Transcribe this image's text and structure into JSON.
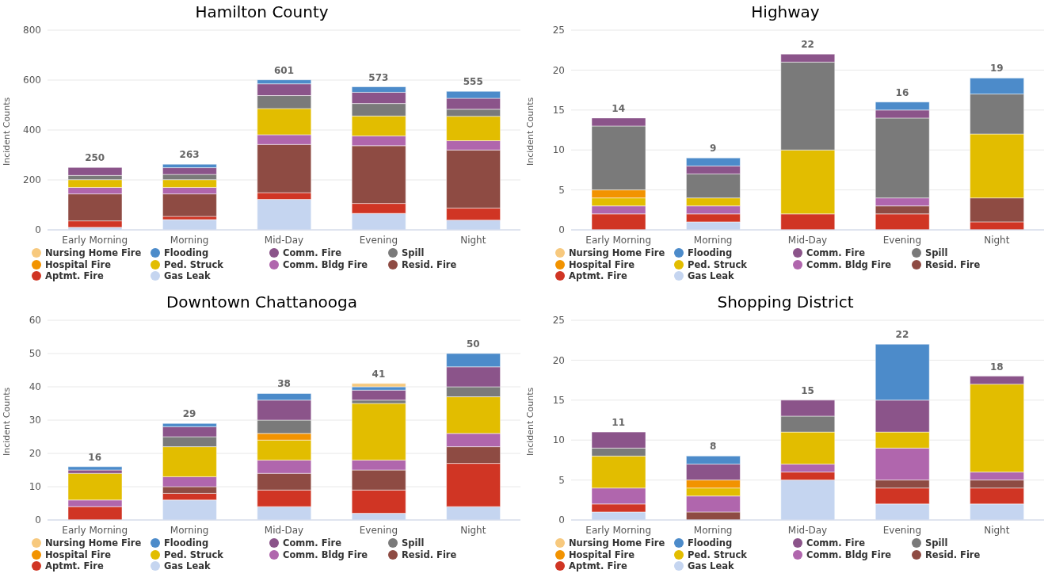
{
  "chart_data": [
    {
      "type": "bar",
      "title": "Hamilton County",
      "ylabel": "Incident Counts",
      "categories": [
        "Early Morning",
        "Morning",
        "Mid-Day",
        "Evening",
        "Night"
      ],
      "stacked": true,
      "ylim": [
        0,
        800
      ],
      "yticks": [
        0,
        200,
        400,
        600,
        800
      ],
      "grid": "y",
      "legend": "bottom",
      "totals": [
        "250",
        "263",
        "601",
        "573",
        "555"
      ],
      "series": [
        {
          "name": "Gas Leak",
          "color": "#c5d5f0",
          "values": [
            10,
            41,
            122,
            66,
            39
          ]
        },
        {
          "name": "Aptmt. Fire",
          "color": "#d03524",
          "values": [
            26,
            13,
            27,
            40,
            48
          ]
        },
        {
          "name": "Resid. Fire",
          "color": "#8e4b43",
          "values": [
            108,
            90,
            193,
            231,
            233
          ]
        },
        {
          "name": "Comm. Bldg Fire",
          "color": "#b066ad",
          "values": [
            26,
            26,
            39,
            39,
            37
          ]
        },
        {
          "name": "Ped. Struck",
          "color": "#e2bd00",
          "values": [
            31,
            31,
            105,
            80,
            98
          ]
        },
        {
          "name": "Hospital Fire",
          "color": "#f29300",
          "values": [
            null,
            null,
            null,
            null,
            null
          ]
        },
        {
          "name": "Spill",
          "color": "#7a7a7a",
          "values": [
            17,
            21,
            52,
            50,
            28
          ]
        },
        {
          "name": "Comm. Fire",
          "color": "#8b548a",
          "values": [
            32,
            27,
            47,
            45,
            44
          ]
        },
        {
          "name": "Flooding",
          "color": "#4c8bca",
          "values": [
            null,
            14,
            16,
            22,
            28
          ]
        },
        {
          "name": "Nursing Home Fire",
          "color": "#f7c97e",
          "values": [
            null,
            null,
            null,
            null,
            null
          ]
        }
      ]
    },
    {
      "type": "bar",
      "title": "Highway",
      "ylabel": "Incident Counts",
      "categories": [
        "Early Morning",
        "Morning",
        "Mid-Day",
        "Evening",
        "Night"
      ],
      "stacked": true,
      "ylim": [
        0,
        25
      ],
      "yticks": [
        0,
        5,
        10,
        15,
        20,
        25
      ],
      "grid": "y",
      "legend": "bottom",
      "totals": [
        "14",
        "9",
        "22",
        "16",
        "19"
      ],
      "series": [
        {
          "name": "Gas Leak",
          "color": "#c5d5f0",
          "values": [
            null,
            1,
            null,
            null,
            null
          ]
        },
        {
          "name": "Aptmt. Fire",
          "color": "#d03524",
          "values": [
            2,
            1,
            2,
            2,
            1
          ]
        },
        {
          "name": "Resid. Fire",
          "color": "#8e4b43",
          "values": [
            null,
            null,
            null,
            1,
            3
          ]
        },
        {
          "name": "Comm. Bldg Fire",
          "color": "#b066ad",
          "values": [
            1,
            1,
            null,
            1,
            null
          ]
        },
        {
          "name": "Ped. Struck",
          "color": "#e2bd00",
          "values": [
            1,
            1,
            8,
            null,
            8
          ]
        },
        {
          "name": "Hospital Fire",
          "color": "#f29300",
          "values": [
            1,
            null,
            null,
            null,
            null
          ]
        },
        {
          "name": "Spill",
          "color": "#7a7a7a",
          "values": [
            8,
            3,
            11,
            10,
            5
          ]
        },
        {
          "name": "Comm. Fire",
          "color": "#8b548a",
          "values": [
            1,
            1,
            1,
            1,
            null
          ]
        },
        {
          "name": "Flooding",
          "color": "#4c8bca",
          "values": [
            null,
            1,
            null,
            1,
            2
          ]
        },
        {
          "name": "Nursing Home Fire",
          "color": "#f7c97e",
          "values": [
            null,
            null,
            null,
            null,
            null
          ]
        }
      ]
    },
    {
      "type": "bar",
      "title": "Downtown Chattanooga",
      "ylabel": "Incident Counts",
      "categories": [
        "Early Morning",
        "Morning",
        "Mid-Day",
        "Evening",
        "Night"
      ],
      "stacked": true,
      "ylim": [
        0,
        60
      ],
      "yticks": [
        0,
        10,
        20,
        30,
        40,
        50,
        60
      ],
      "grid": "y",
      "legend": "bottom",
      "totals": [
        "16",
        "29",
        "38",
        "41",
        "50"
      ],
      "series": [
        {
          "name": "Gas Leak",
          "color": "#c5d5f0",
          "values": [
            null,
            6,
            4,
            2,
            4
          ]
        },
        {
          "name": "Aptmt. Fire",
          "color": "#d03524",
          "values": [
            4,
            2,
            5,
            7,
            13
          ]
        },
        {
          "name": "Resid. Fire",
          "color": "#8e4b43",
          "values": [
            null,
            2,
            5,
            6,
            5
          ]
        },
        {
          "name": "Comm. Bldg Fire",
          "color": "#b066ad",
          "values": [
            2,
            3,
            4,
            3,
            4
          ]
        },
        {
          "name": "Ped. Struck",
          "color": "#e2bd00",
          "values": [
            8,
            9,
            6,
            17,
            11
          ]
        },
        {
          "name": "Hospital Fire",
          "color": "#f29300",
          "values": [
            null,
            null,
            2,
            null,
            null
          ]
        },
        {
          "name": "Spill",
          "color": "#7a7a7a",
          "values": [
            null,
            3,
            4,
            1,
            3
          ]
        },
        {
          "name": "Comm. Fire",
          "color": "#8b548a",
          "values": [
            1,
            3,
            6,
            3,
            6
          ]
        },
        {
          "name": "Flooding",
          "color": "#4c8bca",
          "values": [
            1,
            1,
            2,
            1,
            4
          ]
        },
        {
          "name": "Nursing Home Fire",
          "color": "#f7c97e",
          "values": [
            null,
            null,
            null,
            1,
            null
          ]
        }
      ]
    },
    {
      "type": "bar",
      "title": "Shopping District",
      "ylabel": "Incident Counts",
      "categories": [
        "Early Morning",
        "Morning",
        "Mid-Day",
        "Evening",
        "Night"
      ],
      "stacked": true,
      "ylim": [
        0,
        25
      ],
      "yticks": [
        0,
        5,
        10,
        15,
        20,
        25
      ],
      "grid": "y",
      "legend": "bottom",
      "totals": [
        "11",
        "8",
        "15",
        "22",
        "18"
      ],
      "series": [
        {
          "name": "Gas Leak",
          "color": "#c5d5f0",
          "values": [
            1,
            null,
            5,
            2,
            2
          ]
        },
        {
          "name": "Aptmt. Fire",
          "color": "#d03524",
          "values": [
            1,
            null,
            1,
            2,
            2
          ]
        },
        {
          "name": "Resid. Fire",
          "color": "#8e4b43",
          "values": [
            null,
            1,
            null,
            1,
            1
          ]
        },
        {
          "name": "Comm. Bldg Fire",
          "color": "#b066ad",
          "values": [
            2,
            2,
            1,
            4,
            1
          ]
        },
        {
          "name": "Ped. Struck",
          "color": "#e2bd00",
          "values": [
            4,
            1,
            4,
            2,
            11
          ]
        },
        {
          "name": "Hospital Fire",
          "color": "#f29300",
          "values": [
            null,
            1,
            null,
            null,
            null
          ]
        },
        {
          "name": "Spill",
          "color": "#7a7a7a",
          "values": [
            1,
            null,
            2,
            null,
            null
          ]
        },
        {
          "name": "Comm. Fire",
          "color": "#8b548a",
          "values": [
            2,
            2,
            2,
            4,
            1
          ]
        },
        {
          "name": "Flooding",
          "color": "#4c8bca",
          "values": [
            null,
            1,
            null,
            7,
            null
          ]
        },
        {
          "name": "Nursing Home Fire",
          "color": "#f7c97e",
          "values": [
            null,
            null,
            null,
            null,
            null
          ]
        }
      ]
    }
  ]
}
